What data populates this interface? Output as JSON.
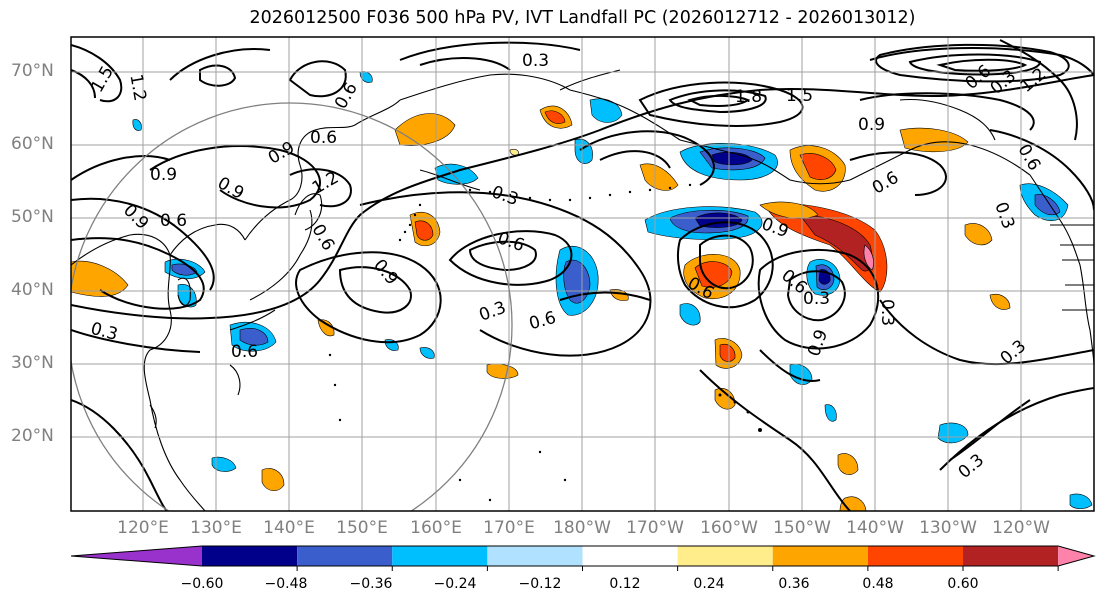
{
  "title": "2026012500 F036 500 hPa PV, IVT Landfall PC (2026012712 - 2026013012)",
  "lat_labels": [
    "70°N",
    "60°N",
    "50°N",
    "40°N",
    "30°N",
    "20°N"
  ],
  "lon_labels": [
    "120°E",
    "130°E",
    "140°E",
    "150°E",
    "160°E",
    "170°E",
    "180°W",
    "170°W",
    "160°W",
    "150°W",
    "140°W",
    "130°W",
    "120°W"
  ],
  "contour_labels": [
    "0.3",
    "1.5",
    "1.2",
    "0.6",
    "1.8",
    "1.5",
    "0.9",
    "0.6",
    "0.9",
    "0.9",
    "0.6",
    "1.2",
    "0.6",
    "0.9",
    "0.3",
    "0.6",
    "0.9",
    "0.9",
    "0.3",
    "0.6",
    "0.3",
    "0.6",
    "0.6",
    "0.6",
    "0.3",
    "0.3",
    "0.3",
    "0.9",
    "0.6",
    "0.3",
    "0.3",
    "0.6",
    "1.2",
    "0.3",
    "0.6",
    "0.9"
  ],
  "colorbar": {
    "ticks": [
      "−0.60",
      "−0.48",
      "−0.36",
      "−0.24",
      "−0.12",
      "0.12",
      "0.24",
      "0.36",
      "0.48",
      "0.60"
    ],
    "colors": [
      "#9932CC",
      "#00008B",
      "#3A5FCD",
      "#00BFFF",
      "#B0E2FF",
      "#FFFFFF",
      "#FFEC8B",
      "#FFA500",
      "#FF4500",
      "#B22222",
      "#FF82AB"
    ]
  }
}
